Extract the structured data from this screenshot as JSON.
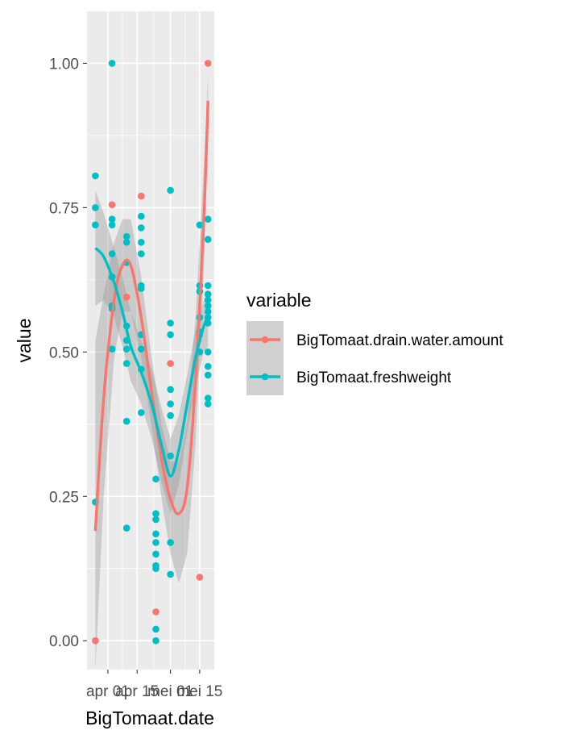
{
  "chart_data": {
    "type": "scatter",
    "xlabel": "BigTomaat.date",
    "ylabel": "value",
    "x_ticks": [
      {
        "label": "apr 01",
        "date": "2019-04-01"
      },
      {
        "label": "apr 15",
        "date": "2019-04-15"
      },
      {
        "label": "mei 01",
        "date": "2019-05-01"
      },
      {
        "label": "mei 15",
        "date": "2019-05-15"
      }
    ],
    "xlim": [
      "2019-03-22",
      "2019-05-22"
    ],
    "ylim": [
      -0.05,
      1.09
    ],
    "y_ticks": [
      "0.00",
      "0.25",
      "0.50",
      "0.75",
      "1.00"
    ],
    "y_tick_values": [
      0,
      0.25,
      0.5,
      0.75,
      1.0
    ],
    "grid": true,
    "legend": {
      "title": "variable",
      "placement": "right",
      "entries": [
        "BigTomaat.drain.water.amount",
        "BigTomaat.freshweight"
      ]
    },
    "series": [
      {
        "name": "BigTomaat.drain.water.amount",
        "color": "#F8766D",
        "points": [
          [
            "2019-03-26",
            0.0
          ],
          [
            "2019-04-03",
            0.755
          ],
          [
            "2019-04-10",
            0.595
          ],
          [
            "2019-04-17",
            0.77
          ],
          [
            "2019-04-24",
            0.05
          ],
          [
            "2019-05-01",
            0.48
          ],
          [
            "2019-05-15",
            0.11
          ],
          [
            "2019-05-19",
            1.0
          ]
        ],
        "smooth": [
          [
            "2019-03-26",
            0.19
          ],
          [
            "2019-03-30",
            0.42
          ],
          [
            "2019-04-04",
            0.59
          ],
          [
            "2019-04-08",
            0.65
          ],
          [
            "2019-04-12",
            0.65
          ],
          [
            "2019-04-17",
            0.56
          ],
          [
            "2019-04-22",
            0.43
          ],
          [
            "2019-04-27",
            0.31
          ],
          [
            "2019-05-01",
            0.245
          ],
          [
            "2019-05-05",
            0.22
          ],
          [
            "2019-05-09",
            0.265
          ],
          [
            "2019-05-13",
            0.45
          ],
          [
            "2019-05-17",
            0.73
          ],
          [
            "2019-05-19",
            0.935
          ]
        ],
        "band_upper": [
          [
            "2019-03-26",
            0.52
          ],
          [
            "2019-03-30",
            0.6
          ],
          [
            "2019-04-04",
            0.69
          ],
          [
            "2019-04-08",
            0.73
          ],
          [
            "2019-04-12",
            0.73
          ],
          [
            "2019-04-17",
            0.63
          ],
          [
            "2019-04-22",
            0.49
          ],
          [
            "2019-04-27",
            0.37
          ],
          [
            "2019-05-01",
            0.31
          ],
          [
            "2019-05-05",
            0.31
          ],
          [
            "2019-05-09",
            0.38
          ],
          [
            "2019-05-13",
            0.56
          ],
          [
            "2019-05-17",
            0.82
          ],
          [
            "2019-05-19",
            0.98
          ]
        ],
        "band_lower": [
          [
            "2019-03-26",
            -0.05
          ],
          [
            "2019-03-30",
            0.25
          ],
          [
            "2019-04-04",
            0.49
          ],
          [
            "2019-04-08",
            0.57
          ],
          [
            "2019-04-12",
            0.57
          ],
          [
            "2019-04-17",
            0.49
          ],
          [
            "2019-04-22",
            0.37
          ],
          [
            "2019-04-27",
            0.24
          ],
          [
            "2019-05-01",
            0.15
          ],
          [
            "2019-05-05",
            0.1
          ],
          [
            "2019-05-09",
            0.15
          ],
          [
            "2019-05-13",
            0.34
          ],
          [
            "2019-05-17",
            0.64
          ],
          [
            "2019-05-19",
            0.89
          ]
        ]
      },
      {
        "name": "BigTomaat.freshweight",
        "color": "#00BFC4",
        "points": [
          [
            "2019-03-26",
            0.805
          ],
          [
            "2019-03-26",
            0.75
          ],
          [
            "2019-03-26",
            0.72
          ],
          [
            "2019-03-26",
            0.24
          ],
          [
            "2019-04-03",
            1.0
          ],
          [
            "2019-04-03",
            0.73
          ],
          [
            "2019-04-03",
            0.72
          ],
          [
            "2019-04-03",
            0.67
          ],
          [
            "2019-04-03",
            0.63
          ],
          [
            "2019-04-03",
            0.58
          ],
          [
            "2019-04-03",
            0.575
          ],
          [
            "2019-04-03",
            0.505
          ],
          [
            "2019-04-10",
            0.7
          ],
          [
            "2019-04-10",
            0.69
          ],
          [
            "2019-04-10",
            0.655
          ],
          [
            "2019-04-10",
            0.545
          ],
          [
            "2019-04-10",
            0.52
          ],
          [
            "2019-04-10",
            0.505
          ],
          [
            "2019-04-10",
            0.48
          ],
          [
            "2019-04-10",
            0.38
          ],
          [
            "2019-04-10",
            0.195
          ],
          [
            "2019-04-17",
            0.735
          ],
          [
            "2019-04-17",
            0.715
          ],
          [
            "2019-04-17",
            0.69
          ],
          [
            "2019-04-17",
            0.67
          ],
          [
            "2019-04-17",
            0.615
          ],
          [
            "2019-04-17",
            0.61
          ],
          [
            "2019-04-17",
            0.53
          ],
          [
            "2019-04-17",
            0.505
          ],
          [
            "2019-04-17",
            0.47
          ],
          [
            "2019-04-17",
            0.395
          ],
          [
            "2019-04-24",
            0.28
          ],
          [
            "2019-04-24",
            0.22
          ],
          [
            "2019-04-24",
            0.21
          ],
          [
            "2019-04-24",
            0.185
          ],
          [
            "2019-04-24",
            0.17
          ],
          [
            "2019-04-24",
            0.15
          ],
          [
            "2019-04-24",
            0.13
          ],
          [
            "2019-04-24",
            0.125
          ],
          [
            "2019-04-24",
            0.02
          ],
          [
            "2019-04-24",
            0.0
          ],
          [
            "2019-05-01",
            0.78
          ],
          [
            "2019-05-01",
            0.55
          ],
          [
            "2019-05-01",
            0.53
          ],
          [
            "2019-05-01",
            0.435
          ],
          [
            "2019-05-01",
            0.41
          ],
          [
            "2019-05-01",
            0.39
          ],
          [
            "2019-05-01",
            0.32
          ],
          [
            "2019-05-01",
            0.17
          ],
          [
            "2019-05-01",
            0.115
          ],
          [
            "2019-05-15",
            0.72
          ],
          [
            "2019-05-15",
            0.615
          ],
          [
            "2019-05-15",
            0.605
          ],
          [
            "2019-05-15",
            0.56
          ],
          [
            "2019-05-15",
            0.535
          ],
          [
            "2019-05-15",
            0.53
          ],
          [
            "2019-05-15",
            0.5
          ],
          [
            "2019-05-19",
            0.73
          ],
          [
            "2019-05-19",
            0.695
          ],
          [
            "2019-05-19",
            0.615
          ],
          [
            "2019-05-19",
            0.6
          ],
          [
            "2019-05-19",
            0.59
          ],
          [
            "2019-05-19",
            0.58
          ],
          [
            "2019-05-19",
            0.57
          ],
          [
            "2019-05-19",
            0.56
          ],
          [
            "2019-05-19",
            0.55
          ],
          [
            "2019-05-19",
            0.5
          ],
          [
            "2019-05-19",
            0.475
          ],
          [
            "2019-05-19",
            0.46
          ],
          [
            "2019-05-19",
            0.42
          ],
          [
            "2019-05-19",
            0.41
          ]
        ],
        "smooth": [
          [
            "2019-03-26",
            0.68
          ],
          [
            "2019-03-30",
            0.665
          ],
          [
            "2019-04-04",
            0.62
          ],
          [
            "2019-04-08",
            0.57
          ],
          [
            "2019-04-12",
            0.51
          ],
          [
            "2019-04-17",
            0.465
          ],
          [
            "2019-04-22",
            0.41
          ],
          [
            "2019-04-27",
            0.335
          ],
          [
            "2019-05-01",
            0.285
          ],
          [
            "2019-05-05",
            0.33
          ],
          [
            "2019-05-09",
            0.41
          ],
          [
            "2019-05-13",
            0.49
          ],
          [
            "2019-05-17",
            0.545
          ],
          [
            "2019-05-19",
            0.56
          ]
        ],
        "band_upper": [
          [
            "2019-03-26",
            0.78
          ],
          [
            "2019-03-30",
            0.74
          ],
          [
            "2019-04-04",
            0.68
          ],
          [
            "2019-04-08",
            0.63
          ],
          [
            "2019-04-12",
            0.57
          ],
          [
            "2019-04-17",
            0.52
          ],
          [
            "2019-04-22",
            0.47
          ],
          [
            "2019-04-27",
            0.4
          ],
          [
            "2019-05-01",
            0.35
          ],
          [
            "2019-05-05",
            0.39
          ],
          [
            "2019-05-09",
            0.46
          ],
          [
            "2019-05-13",
            0.54
          ],
          [
            "2019-05-17",
            0.59
          ],
          [
            "2019-05-19",
            0.61
          ]
        ],
        "band_lower": [
          [
            "2019-03-26",
            0.58
          ],
          [
            "2019-03-30",
            0.59
          ],
          [
            "2019-04-04",
            0.56
          ],
          [
            "2019-04-08",
            0.51
          ],
          [
            "2019-04-12",
            0.45
          ],
          [
            "2019-04-17",
            0.41
          ],
          [
            "2019-04-22",
            0.35
          ],
          [
            "2019-04-27",
            0.27
          ],
          [
            "2019-05-01",
            0.22
          ],
          [
            "2019-05-05",
            0.27
          ],
          [
            "2019-05-09",
            0.36
          ],
          [
            "2019-05-13",
            0.44
          ],
          [
            "2019-05-17",
            0.5
          ],
          [
            "2019-05-19",
            0.51
          ]
        ]
      }
    ]
  }
}
